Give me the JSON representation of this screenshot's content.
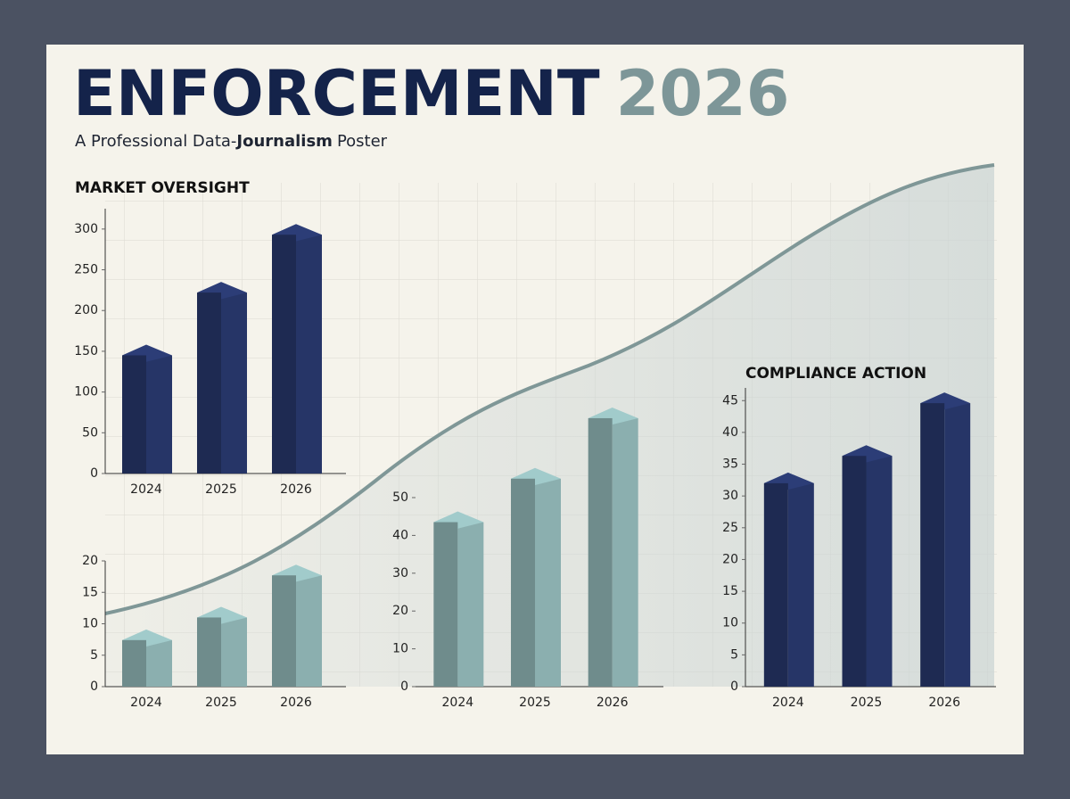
{
  "header": {
    "title": [
      "ENFORCEMENT",
      "2026"
    ],
    "subtitle": [
      "A Professional Data-",
      "Journalism",
      "Poster"
    ]
  },
  "chart_data": [
    {
      "type": "bar",
      "title": "MARKET OVERSIGHT",
      "categories": [
        "2024",
        "2025",
        "2026"
      ],
      "values": [
        145,
        222,
        293
      ],
      "color": "#1e2a52",
      "ylim": [
        0,
        325
      ],
      "yticks": [
        0,
        50,
        100,
        150,
        200,
        250,
        300
      ]
    },
    {
      "type": "bar",
      "categories": [
        "2024",
        "2025",
        "2026"
      ],
      "values": [
        7.4,
        11,
        17.7
      ],
      "color": "#6f8c8c",
      "ylim": [
        0,
        20
      ],
      "yticks": [
        0,
        5,
        10,
        15,
        20
      ]
    },
    {
      "type": "bar",
      "categories": [
        "2024",
        "2025",
        "2026"
      ],
      "values": [
        43.5,
        55,
        71
      ],
      "color": "#6f8c8c",
      "ylim": [
        0,
        75
      ],
      "yticks": [
        0,
        10,
        20,
        30,
        40,
        50
      ]
    },
    {
      "type": "bar",
      "title": "COMPLIANCE ACTION",
      "categories": [
        "2024",
        "2025",
        "2026"
      ],
      "values": [
        32,
        36.3,
        44.6
      ],
      "color": "#1e2a52",
      "ylim": [
        0,
        47
      ],
      "yticks": [
        0,
        5,
        10,
        15,
        20,
        25,
        30,
        35,
        40,
        45
      ]
    }
  ]
}
